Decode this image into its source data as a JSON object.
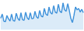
{
  "chart_data": {
    "type": "area",
    "color": "#3a8fd9",
    "x": [
      0,
      1,
      2,
      3,
      4,
      5,
      6,
      7,
      8,
      9,
      10,
      11,
      12,
      13,
      14,
      15,
      16,
      17,
      18,
      19,
      20,
      21,
      22,
      23,
      24,
      25,
      26,
      27,
      28,
      29,
      30,
      31,
      32,
      33,
      34,
      35,
      36,
      37,
      38,
      39,
      40,
      41,
      42,
      43,
      44,
      45,
      46,
      47,
      48,
      49,
      50,
      51,
      52,
      53
    ],
    "values": [
      40,
      55,
      30,
      28,
      50,
      38,
      30,
      55,
      32,
      30,
      58,
      40,
      32,
      60,
      35,
      33,
      62,
      42,
      35,
      60,
      38,
      40,
      65,
      45,
      40,
      68,
      48,
      45,
      75,
      55,
      50,
      80,
      60,
      55,
      85,
      62,
      58,
      90,
      65,
      60,
      95,
      70,
      65,
      92,
      68,
      40,
      25,
      50,
      80,
      70,
      75,
      62,
      72,
      60
    ],
    "xlim": [
      0,
      53
    ],
    "ylim": [
      0,
      100
    ],
    "grid": false,
    "tick_labels": false
  }
}
